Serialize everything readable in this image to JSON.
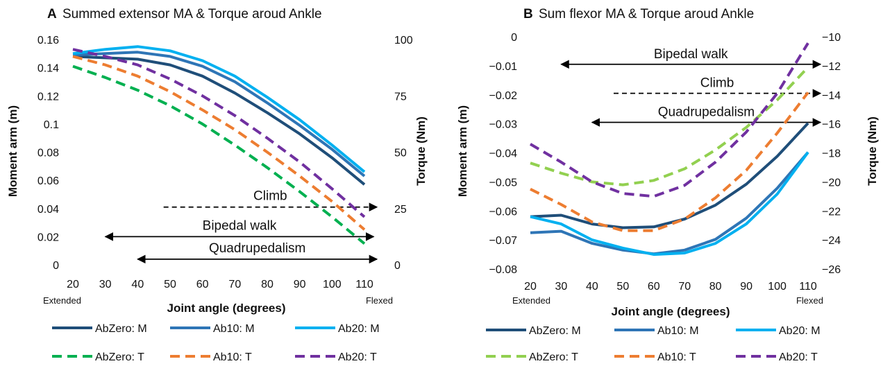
{
  "chart_data": [
    {
      "panel": "A",
      "type": "line",
      "title": "Summed extensor MA & Torque aroud Ankle",
      "xlabel": "Joint angle (degrees)",
      "x_end_labels": [
        "Extended",
        "Flexed"
      ],
      "ylabel": "Moment arm (m)",
      "y2label": "Torque (Nm)",
      "x": [
        20,
        30,
        40,
        50,
        60,
        70,
        80,
        90,
        100,
        110
      ],
      "xlim": [
        20,
        110
      ],
      "ylim": [
        0,
        0.16
      ],
      "yticks": [
        "0",
        "0.02",
        "0.04",
        "0.06",
        "0.08",
        "0.1",
        "0.12",
        "0.14",
        "0.16"
      ],
      "y2lim": [
        0,
        100
      ],
      "y2ticks": [
        "0",
        "25",
        "50",
        "75",
        "100"
      ],
      "grid": false,
      "legend_position": "bottom",
      "series": [
        {
          "name": "AbZero: M",
          "axis": "left",
          "color": "#1f4e79",
          "dash": "solid",
          "values": [
            0.148,
            0.147,
            0.146,
            0.142,
            0.134,
            0.122,
            0.108,
            0.093,
            0.076,
            0.057
          ]
        },
        {
          "name": "Ab10: M",
          "axis": "left",
          "color": "#2e75b6",
          "dash": "solid",
          "values": [
            0.149,
            0.15,
            0.151,
            0.148,
            0.141,
            0.13,
            0.115,
            0.099,
            0.082,
            0.063
          ]
        },
        {
          "name": "Ab20: M",
          "axis": "left",
          "color": "#00b0f0",
          "dash": "solid",
          "values": [
            0.15,
            0.153,
            0.155,
            0.152,
            0.145,
            0.134,
            0.119,
            0.103,
            0.085,
            0.066
          ]
        },
        {
          "name": "AbZero: T",
          "axis": "left",
          "color": "#00b050",
          "dash": "dashed",
          "values": [
            0.141,
            0.133,
            0.124,
            0.113,
            0.1,
            0.085,
            0.069,
            0.052,
            0.034,
            0.015
          ]
        },
        {
          "name": "Ab10: T",
          "axis": "left",
          "color": "#ed7d31",
          "dash": "dashed",
          "values": [
            0.148,
            0.142,
            0.134,
            0.123,
            0.11,
            0.096,
            0.08,
            0.063,
            0.045,
            0.025
          ]
        },
        {
          "name": "Ab20: T",
          "axis": "left",
          "color": "#7030a0",
          "dash": "dashed",
          "values": [
            0.153,
            0.148,
            0.142,
            0.132,
            0.12,
            0.106,
            0.09,
            0.073,
            0.054,
            0.034
          ]
        }
      ],
      "annotations": [
        {
          "label": "Climb",
          "y": 0.041,
          "x_range": [
            48,
            110
          ],
          "style": "dashed",
          "arrows": "end"
        },
        {
          "label": "Bipedal walk",
          "y": 0.02,
          "x_range": [
            30,
            109
          ],
          "style": "solid",
          "arrows": "both"
        },
        {
          "label": "Quadrupedalism",
          "y": 0.004,
          "x_range": [
            40,
            110
          ],
          "style": "solid",
          "arrows": "both"
        }
      ]
    },
    {
      "panel": "B",
      "type": "line",
      "title": "Sum flexor MA & Torque aroud Ankle",
      "xlabel": "Joint angle (degrees)",
      "x_end_labels": [
        "Extended",
        "Flexed"
      ],
      "ylabel": "Moment arm (m)",
      "y2label": "Torque (Nm)",
      "x": [
        20,
        30,
        40,
        50,
        60,
        70,
        80,
        90,
        100,
        110
      ],
      "xlim": [
        20,
        110
      ],
      "ylim": [
        -0.08,
        0
      ],
      "yticks": [
        "0",
        "-0.01",
        "-0.02",
        "-0.03",
        "-0.04",
        "-0.05",
        "-0.06",
        "-0.07",
        "-0.08"
      ],
      "y2lim": [
        -26,
        -10
      ],
      "y2ticks": [
        "-10",
        "-12",
        "-14",
        "-16",
        "-18",
        "-20",
        "-22",
        "-24",
        "-26"
      ],
      "grid": false,
      "legend_position": "bottom",
      "series": [
        {
          "name": "AbZero: M",
          "axis": "left",
          "color": "#1f4e79",
          "dash": "solid",
          "values": [
            -0.062,
            -0.0615,
            -0.0645,
            -0.0658,
            -0.0655,
            -0.0628,
            -0.058,
            -0.0508,
            -0.0412,
            -0.0298
          ]
        },
        {
          "name": "Ab10: M",
          "axis": "left",
          "color": "#2e75b6",
          "dash": "solid",
          "values": [
            -0.0675,
            -0.067,
            -0.0712,
            -0.0735,
            -0.0748,
            -0.0735,
            -0.0698,
            -0.0625,
            -0.0522,
            -0.0398
          ]
        },
        {
          "name": "Ab20: M",
          "axis": "left",
          "color": "#00b0f0",
          "dash": "solid",
          "values": [
            -0.062,
            -0.0645,
            -0.07,
            -0.0728,
            -0.075,
            -0.0745,
            -0.0712,
            -0.0645,
            -0.0542,
            -0.0398
          ]
        },
        {
          "name": "AbZero: T",
          "axis": "left",
          "color": "#92d050",
          "dash": "dashed",
          "values": [
            -0.0435,
            -0.047,
            -0.05,
            -0.051,
            -0.0495,
            -0.0455,
            -0.039,
            -0.0312,
            -0.0218,
            -0.0105
          ]
        },
        {
          "name": "Ab10: T",
          "axis": "left",
          "color": "#ed7d31",
          "dash": "dashed",
          "values": [
            -0.0525,
            -0.0578,
            -0.0638,
            -0.0668,
            -0.0668,
            -0.0628,
            -0.0555,
            -0.046,
            -0.0332,
            -0.0192
          ]
        },
        {
          "name": "Ab20: T",
          "axis": "left",
          "color": "#7030a0",
          "dash": "dashed",
          "values": [
            -0.037,
            -0.0432,
            -0.05,
            -0.054,
            -0.055,
            -0.0512,
            -0.0432,
            -0.0328,
            -0.0195,
            -0.0022
          ]
        }
      ],
      "annotations": [
        {
          "label": "Bipedal walk",
          "y": -0.0095,
          "x_range": [
            30,
            110
          ],
          "style": "solid",
          "arrows": "both"
        },
        {
          "label": "Climb",
          "y": -0.0195,
          "x_range": [
            47,
            110
          ],
          "style": "dashed",
          "arrows": "end"
        },
        {
          "label": "Quadrupedalism",
          "y": -0.0295,
          "x_range": [
            40,
            110
          ],
          "style": "solid",
          "arrows": "both"
        }
      ]
    }
  ]
}
